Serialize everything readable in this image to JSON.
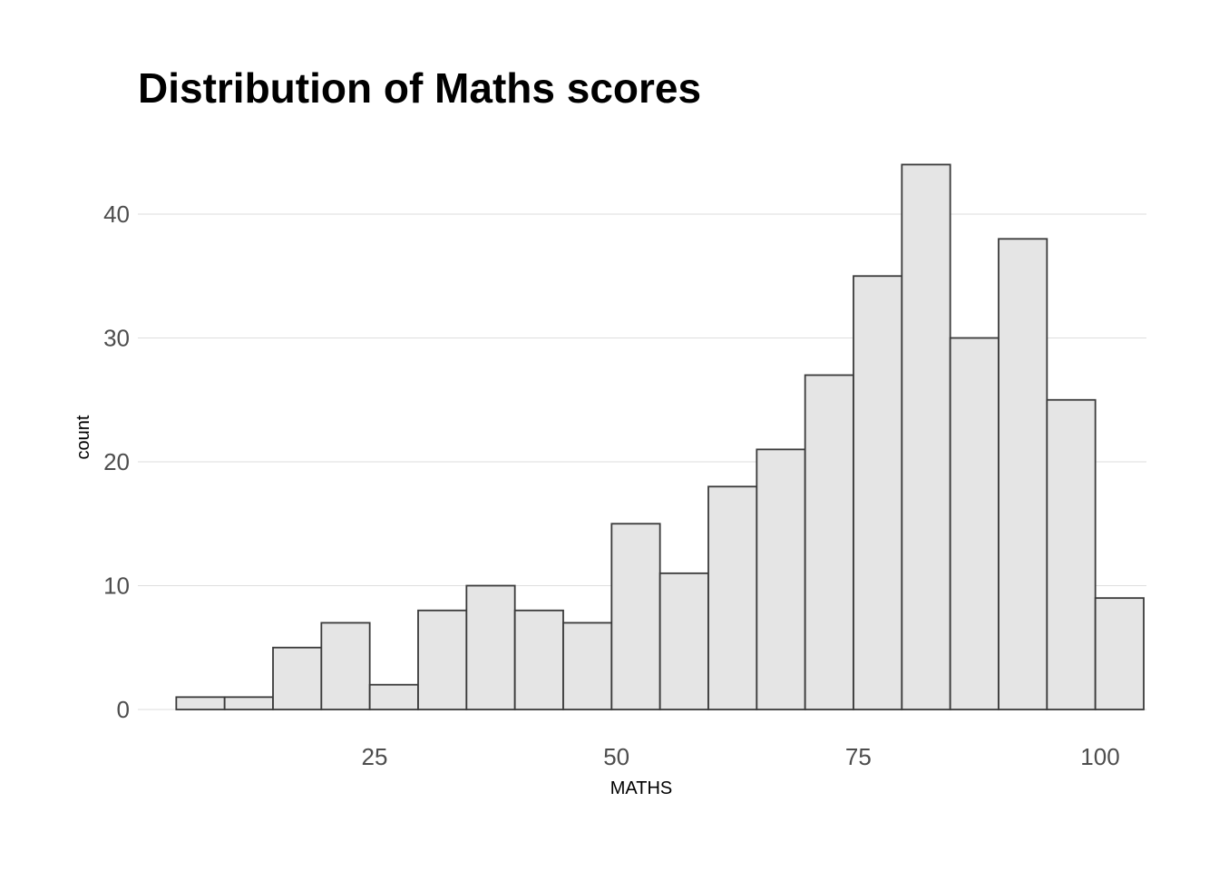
{
  "chart_data": {
    "type": "bar",
    "title": "Distribution of Maths scores",
    "xlabel": "MATHS",
    "ylabel": "count",
    "bin_width": 5.03,
    "bins": [
      {
        "x_start": 4.5,
        "x_end": 9.5,
        "count": 1
      },
      {
        "x_start": 9.5,
        "x_end": 14.5,
        "count": 1
      },
      {
        "x_start": 14.5,
        "x_end": 19.5,
        "count": 5
      },
      {
        "x_start": 19.5,
        "x_end": 24.5,
        "count": 7
      },
      {
        "x_start": 24.5,
        "x_end": 29.5,
        "count": 2
      },
      {
        "x_start": 29.5,
        "x_end": 34.5,
        "count": 8
      },
      {
        "x_start": 34.5,
        "x_end": 39.5,
        "count": 10
      },
      {
        "x_start": 39.5,
        "x_end": 44.5,
        "count": 8
      },
      {
        "x_start": 44.5,
        "x_end": 49.5,
        "count": 7
      },
      {
        "x_start": 49.5,
        "x_end": 54.5,
        "count": 15
      },
      {
        "x_start": 54.5,
        "x_end": 59.5,
        "count": 11
      },
      {
        "x_start": 59.5,
        "x_end": 64.5,
        "count": 18
      },
      {
        "x_start": 64.5,
        "x_end": 69.5,
        "count": 21
      },
      {
        "x_start": 69.5,
        "x_end": 74.5,
        "count": 27
      },
      {
        "x_start": 74.5,
        "x_end": 79.5,
        "count": 35
      },
      {
        "x_start": 79.5,
        "x_end": 84.5,
        "count": 44
      },
      {
        "x_start": 84.5,
        "x_end": 89.5,
        "count": 30
      },
      {
        "x_start": 89.5,
        "x_end": 94.5,
        "count": 38
      },
      {
        "x_start": 94.5,
        "x_end": 99.5,
        "count": 25
      },
      {
        "x_start": 99.5,
        "x_end": 104.5,
        "count": 9
      }
    ],
    "xlim": [
      5,
      105
    ],
    "ylim": [
      0,
      46
    ],
    "x_ticks": [
      25,
      50,
      75,
      100
    ],
    "y_ticks": [
      0,
      10,
      20,
      30,
      40
    ],
    "grid": "horizontal-major",
    "legend": "none",
    "colors": {
      "bar_fill": "#e5e5e5",
      "bar_stroke": "#3a3a3a",
      "grid": "#dedede",
      "tick_text": "#4d4d4d"
    }
  }
}
